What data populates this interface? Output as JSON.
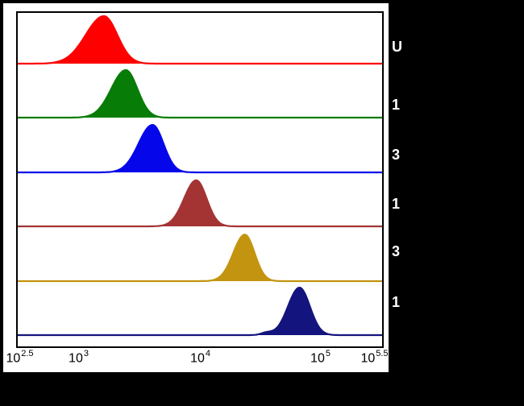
{
  "figure": {
    "background": "#000000",
    "panel_bg": "#ffffff",
    "border_color": "#000000"
  },
  "chart_data": {
    "type": "area",
    "title": "",
    "xlabel": "",
    "ylabel": "",
    "x_scale": "log10",
    "x_range": [
      2.5,
      5.5
    ],
    "grid": false,
    "legend_position": "right-cropped",
    "x_ticks": [
      {
        "base": "10",
        "exp": "2.5",
        "log": 2.5
      },
      {
        "base": "10",
        "exp": "3",
        "log": 3
      },
      {
        "base": "10",
        "exp": "4",
        "log": 4
      },
      {
        "base": "10",
        "exp": "5",
        "log": 5
      },
      {
        "base": "10",
        "exp": "5.5",
        "log": 5.5
      }
    ],
    "series": [
      {
        "label": "U",
        "color": "#fe0000",
        "peak_log": 3.21,
        "sigma_left": 0.15,
        "sigma_right": 0.11,
        "height": 1.0
      },
      {
        "label": "1",
        "color": "#077d07",
        "peak_log": 3.39,
        "sigma_left": 0.12,
        "sigma_right": 0.095,
        "height": 1.0
      },
      {
        "label": "3",
        "color": "#0606ea",
        "peak_log": 3.61,
        "sigma_left": 0.115,
        "sigma_right": 0.09,
        "height": 1.0
      },
      {
        "label": "1",
        "color": "#a43434",
        "peak_log": 3.97,
        "sigma_left": 0.1,
        "sigma_right": 0.085,
        "height": 0.97
      },
      {
        "label": "3",
        "color": "#c39410",
        "peak_log": 4.37,
        "sigma_left": 0.095,
        "sigma_right": 0.08,
        "height": 0.98
      },
      {
        "label": "1",
        "color": "#14147e",
        "peak_log": 4.82,
        "sigma_left": 0.095,
        "sigma_right": 0.085,
        "height": 1.0,
        "foot_bump": {
          "log": 4.55,
          "sigma": 0.045,
          "h": 0.05
        }
      }
    ]
  }
}
